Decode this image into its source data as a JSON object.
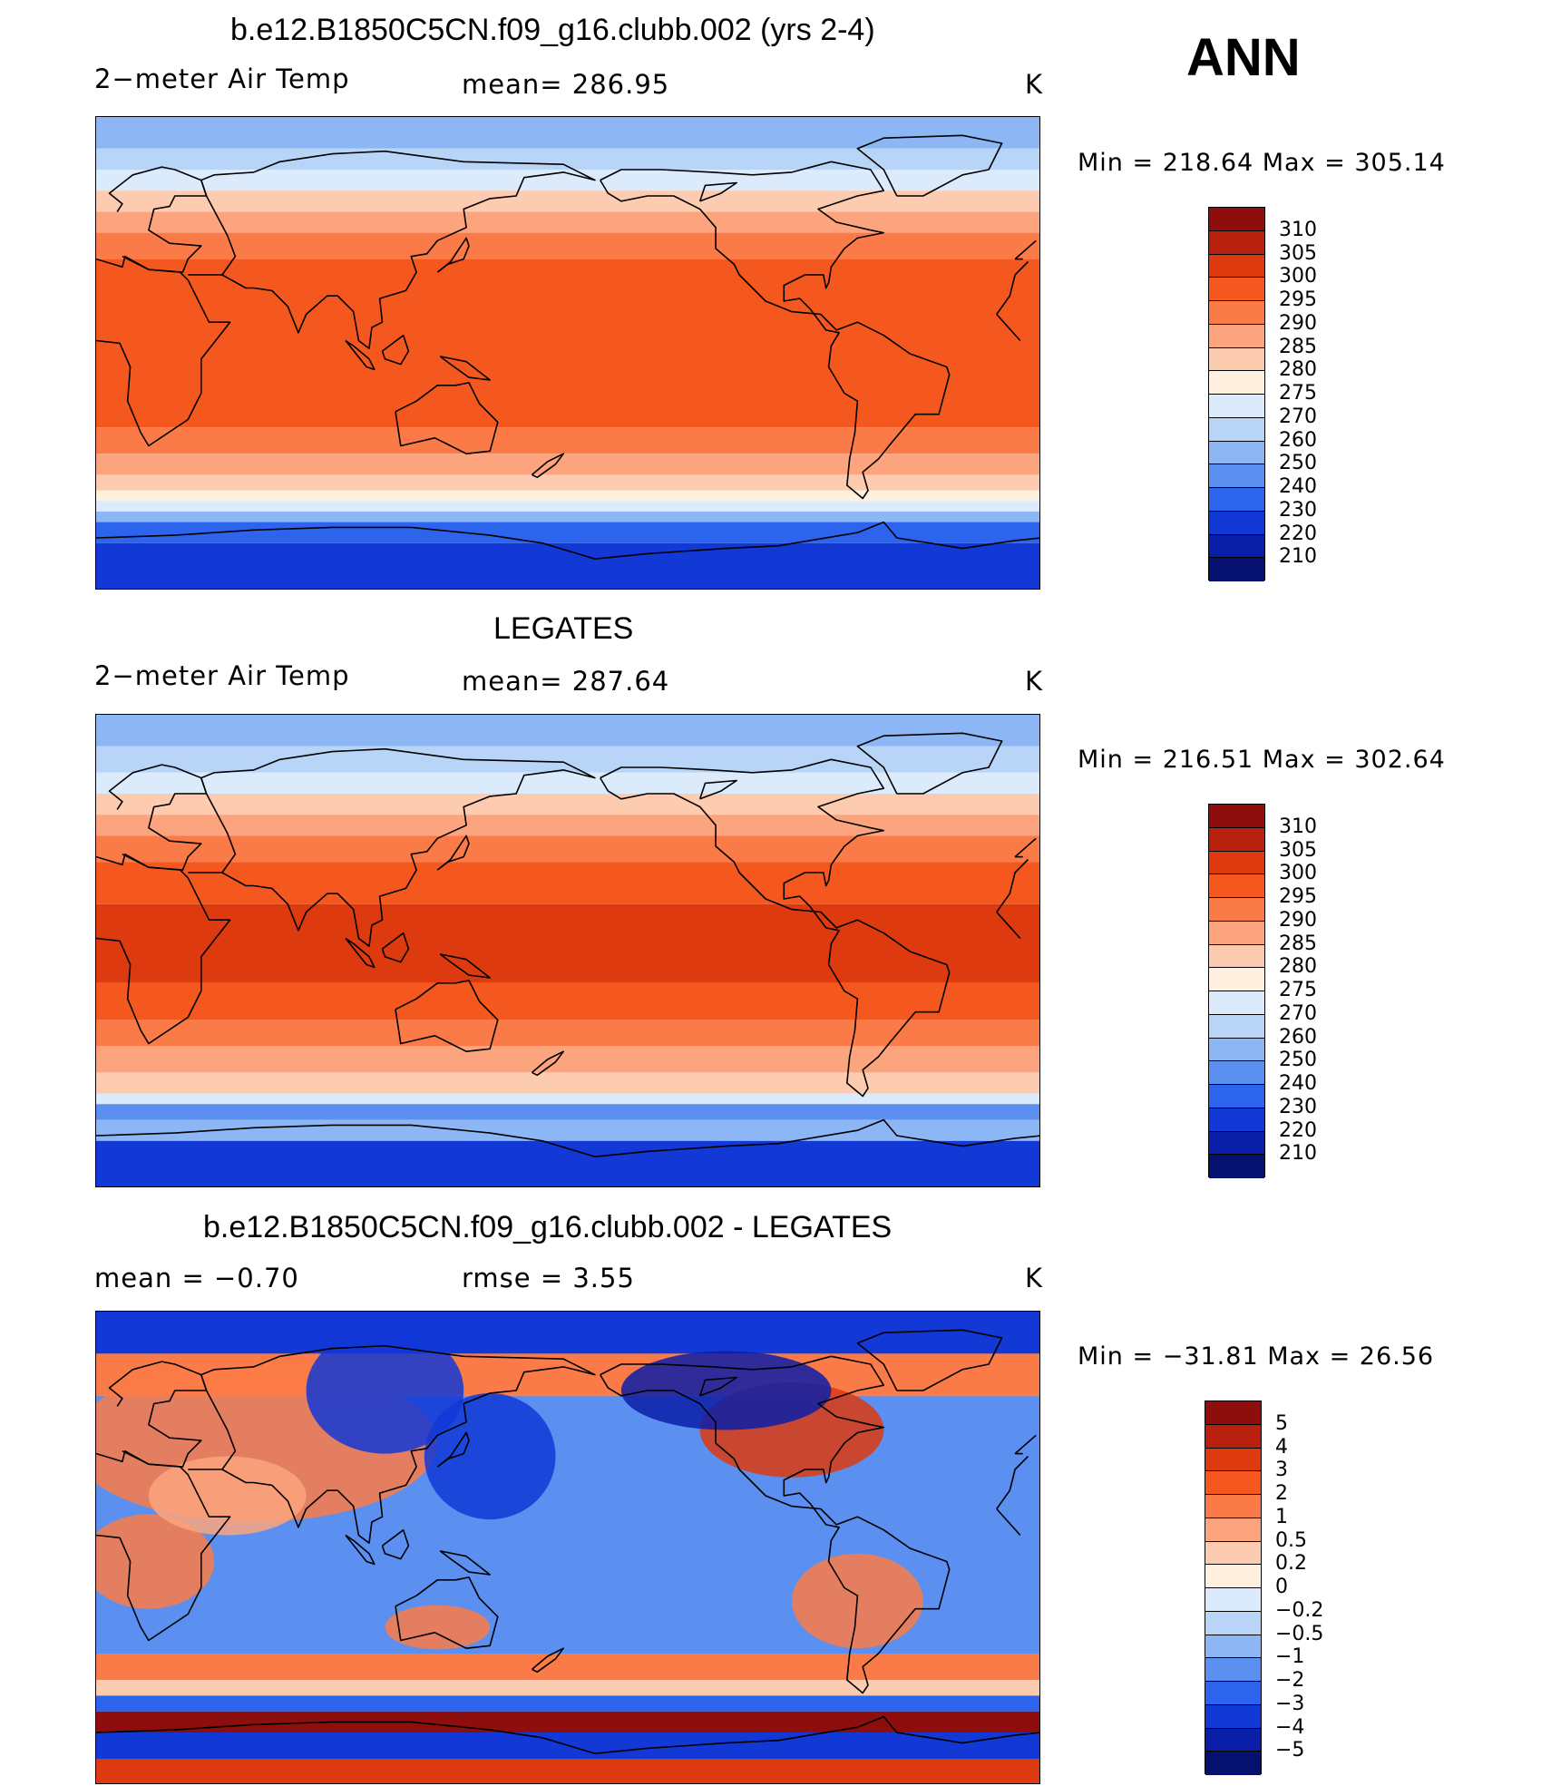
{
  "season": "ANN",
  "panels": [
    {
      "id": "model",
      "title": "b.e12.B1850C5CN.f09_g16.clubb.002 (yrs 2-4)",
      "left_label": "2−meter Air Temp",
      "center_label": "mean=  286.95",
      "units": "K",
      "minmax": "Min  =  218.64  Max  =  305.14",
      "colorbar": {
        "labels": [
          "310",
          "305",
          "300",
          "295",
          "290",
          "285",
          "280",
          "275",
          "270",
          "260",
          "250",
          "240",
          "230",
          "220",
          "210"
        ],
        "colors": [
          "#8e0d0d",
          "#b8210d",
          "#dd3a0f",
          "#f5581f",
          "#fb7b48",
          "#fca47e",
          "#fdcbb0",
          "#fff0e0",
          "#dcebfb",
          "#b8d4f7",
          "#8cb6f4",
          "#5b8ff0",
          "#2d64ee",
          "#1238d6",
          "#0a1fa8",
          "#06106e"
        ]
      },
      "map": {
        "type": "temperature",
        "bands": [
          {
            "lat_from": 90,
            "lat_to": 78,
            "color": "#8cb6f4"
          },
          {
            "lat_from": 78,
            "lat_to": 70,
            "color": "#b8d4f7"
          },
          {
            "lat_from": 70,
            "lat_to": 62,
            "color": "#dcebfb"
          },
          {
            "lat_from": 62,
            "lat_to": 54,
            "color": "#fdcbb0"
          },
          {
            "lat_from": 54,
            "lat_to": 46,
            "color": "#fca47e"
          },
          {
            "lat_from": 46,
            "lat_to": 36,
            "color": "#fb7b48"
          },
          {
            "lat_from": 36,
            "lat_to": -28,
            "color": "#f5581f"
          },
          {
            "lat_from": -28,
            "lat_to": -38,
            "color": "#fb7b48"
          },
          {
            "lat_from": -38,
            "lat_to": -46,
            "color": "#fca47e"
          },
          {
            "lat_from": -46,
            "lat_to": -52,
            "color": "#fdcbb0"
          },
          {
            "lat_from": -52,
            "lat_to": -56,
            "color": "#fff0e0"
          },
          {
            "lat_from": -56,
            "lat_to": -60,
            "color": "#dcebfb"
          },
          {
            "lat_from": -60,
            "lat_to": -64,
            "color": "#8cb6f4"
          },
          {
            "lat_from": -64,
            "lat_to": -72,
            "color": "#2d64ee"
          },
          {
            "lat_from": -72,
            "lat_to": -90,
            "color": "#1238d6"
          }
        ]
      }
    },
    {
      "id": "obs",
      "title": "LEGATES",
      "left_label": "2−meter Air Temp",
      "center_label": "mean=  287.64",
      "units": "K",
      "minmax": "Min  =  216.51  Max  =  302.64",
      "colorbar": {
        "labels": [
          "310",
          "305",
          "300",
          "295",
          "290",
          "285",
          "280",
          "275",
          "270",
          "260",
          "250",
          "240",
          "230",
          "220",
          "210"
        ],
        "colors": [
          "#8e0d0d",
          "#b8210d",
          "#dd3a0f",
          "#f5581f",
          "#fb7b48",
          "#fca47e",
          "#fdcbb0",
          "#fff0e0",
          "#dcebfb",
          "#b8d4f7",
          "#8cb6f4",
          "#5b8ff0",
          "#2d64ee",
          "#1238d6",
          "#0a1fa8",
          "#06106e"
        ]
      },
      "map": {
        "type": "temperature",
        "bands": [
          {
            "lat_from": 90,
            "lat_to": 78,
            "color": "#8cb6f4"
          },
          {
            "lat_from": 78,
            "lat_to": 68,
            "color": "#b8d4f7"
          },
          {
            "lat_from": 68,
            "lat_to": 60,
            "color": "#dcebfb"
          },
          {
            "lat_from": 60,
            "lat_to": 52,
            "color": "#fdcbb0"
          },
          {
            "lat_from": 52,
            "lat_to": 44,
            "color": "#fca47e"
          },
          {
            "lat_from": 44,
            "lat_to": 34,
            "color": "#fb7b48"
          },
          {
            "lat_from": 34,
            "lat_to": 18,
            "color": "#f5581f"
          },
          {
            "lat_from": 18,
            "lat_to": -12,
            "color": "#dd3a0f"
          },
          {
            "lat_from": -12,
            "lat_to": -26,
            "color": "#f5581f"
          },
          {
            "lat_from": -26,
            "lat_to": -36,
            "color": "#fb7b48"
          },
          {
            "lat_from": -36,
            "lat_to": -46,
            "color": "#fca47e"
          },
          {
            "lat_from": -46,
            "lat_to": -54,
            "color": "#fdcbb0"
          },
          {
            "lat_from": -54,
            "lat_to": -58,
            "color": "#dcebfb"
          },
          {
            "lat_from": -58,
            "lat_to": -64,
            "color": "#5b8ff0"
          },
          {
            "lat_from": -64,
            "lat_to": -72,
            "color": "#8cb6f4"
          },
          {
            "lat_from": -72,
            "lat_to": -90,
            "color": "#1238d6"
          }
        ]
      }
    },
    {
      "id": "diff",
      "title": "b.e12.B1850C5CN.f09_g16.clubb.002 - LEGATES",
      "left_label": "mean  =    −0.70",
      "center_label": "rmse  =      3.55",
      "units": "K",
      "minmax": "Min  =  −31.81  Max  =    26.56",
      "colorbar": {
        "labels": [
          "5",
          "4",
          "3",
          "2",
          "1",
          "0.5",
          "0.2",
          "0",
          "−0.2",
          "−0.5",
          "−1",
          "−2",
          "−3",
          "−4",
          "−5"
        ],
        "colors": [
          "#8e0d0d",
          "#b8210d",
          "#dd3a0f",
          "#f5581f",
          "#fb7b48",
          "#fca47e",
          "#fdcbb0",
          "#fff0e0",
          "#dcebfb",
          "#b8d4f7",
          "#8cb6f4",
          "#5b8ff0",
          "#2d64ee",
          "#1238d6",
          "#0a1fa8",
          "#06106e"
        ]
      },
      "map": {
        "type": "difference",
        "bands": [
          {
            "lat_from": 90,
            "lat_to": 74,
            "color": "#1238d6"
          },
          {
            "lat_from": 74,
            "lat_to": 58,
            "color": "#fb7b48"
          },
          {
            "lat_from": 58,
            "lat_to": -40,
            "color": "#5b8ff0"
          },
          {
            "lat_from": -40,
            "lat_to": -50,
            "color": "#fb7b48"
          },
          {
            "lat_from": -50,
            "lat_to": -56,
            "color": "#fdcbb0"
          },
          {
            "lat_from": -56,
            "lat_to": -62,
            "color": "#2d64ee"
          },
          {
            "lat_from": -62,
            "lat_to": -70,
            "color": "#8e0d0d"
          },
          {
            "lat_from": -70,
            "lat_to": -80,
            "color": "#1238d6"
          },
          {
            "lat_from": -80,
            "lat_to": -90,
            "color": "#dd3a0f"
          }
        ]
      }
    }
  ]
}
